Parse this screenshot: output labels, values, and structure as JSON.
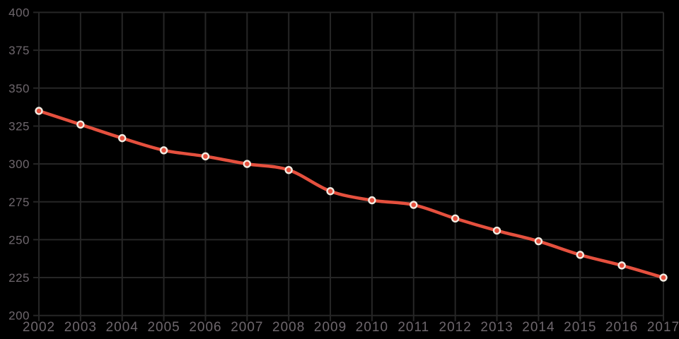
{
  "chart_data": {
    "type": "line",
    "x": [
      "2002",
      "2003",
      "2004",
      "2005",
      "2006",
      "2007",
      "2008",
      "2009",
      "2010",
      "2011",
      "2012",
      "2013",
      "2014",
      "2015",
      "2016",
      "2017"
    ],
    "values": [
      335,
      326,
      317,
      309,
      305,
      300,
      296,
      282,
      276,
      273,
      264,
      256,
      249,
      240,
      233,
      225
    ],
    "title": "",
    "xlabel": "",
    "ylabel": "",
    "ylim": [
      200,
      400
    ],
    "yticks": [
      200,
      225,
      250,
      275,
      300,
      325,
      350,
      375,
      400
    ],
    "grid": true,
    "legend": false,
    "smooth": true,
    "marker": "circle",
    "colors": {
      "background": "#000000",
      "grid_line": "#262626",
      "tick_label": "#6e676d",
      "line": "#e5503e",
      "marker_fill": "#e5503e",
      "marker_stroke": "#f2ece2"
    }
  }
}
